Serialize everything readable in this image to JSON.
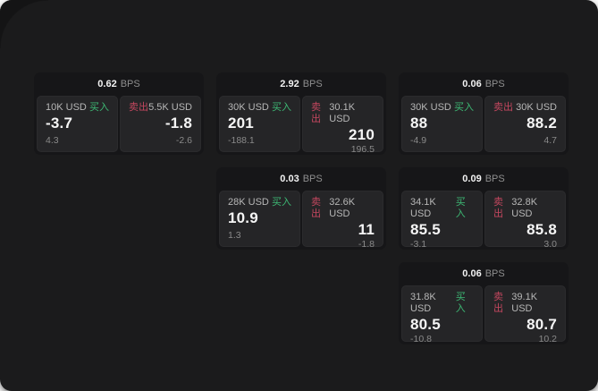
{
  "labels": {
    "buy": "买入",
    "sell": "卖出",
    "bps": "BPS"
  },
  "colors": {
    "page_bg": "#1b1b1c",
    "card_bg": "#161618",
    "panel_bg": "#252527",
    "buy_green": "#3db974",
    "sell_red": "#c4475f"
  },
  "cards": [
    {
      "bps": "0.62",
      "buy": {
        "amount": "10K USD",
        "price": "-3.7",
        "delta": "4.3"
      },
      "sell": {
        "amount": "5.5K USD",
        "price": "-1.8",
        "delta": "-2.6"
      }
    },
    {
      "bps": "2.92",
      "buy": {
        "amount": "30K USD",
        "price": "201",
        "delta": "-188.1"
      },
      "sell": {
        "amount": "30.1K USD",
        "price": "210",
        "delta": "196.5"
      }
    },
    {
      "bps": "0.06",
      "buy": {
        "amount": "30K USD",
        "price": "88",
        "delta": "-4.9"
      },
      "sell": {
        "amount": "30K USD",
        "price": "88.2",
        "delta": "4.7"
      }
    },
    {
      "bps": "0.03",
      "buy": {
        "amount": "28K USD",
        "price": "10.9",
        "delta": "1.3"
      },
      "sell": {
        "amount": "32.6K USD",
        "price": "11",
        "delta": "-1.8"
      }
    },
    {
      "bps": "0.09",
      "buy": {
        "amount": "34.1K USD",
        "price": "85.5",
        "delta": "-3.1"
      },
      "sell": {
        "amount": "32.8K USD",
        "price": "85.8",
        "delta": "3.0"
      }
    },
    {
      "bps": "0.06",
      "buy": {
        "amount": "31.8K USD",
        "price": "80.5",
        "delta": "-10.8"
      },
      "sell": {
        "amount": "39.1K USD",
        "price": "80.7",
        "delta": "10.2"
      }
    }
  ]
}
